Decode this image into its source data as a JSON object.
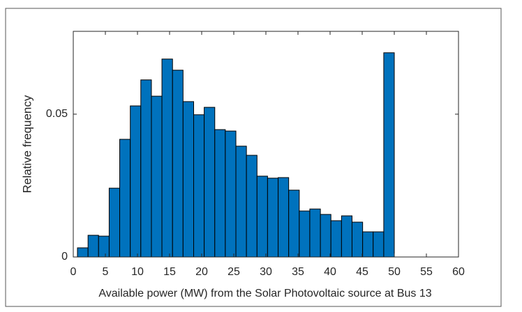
{
  "chart_data": {
    "type": "histogram",
    "xlabel": "Available power (MW) from the Solar Photovoltaic source at Bus 13",
    "ylabel": "Relative frequency",
    "bins": [
      0.65,
      2.3,
      3.94,
      5.59,
      7.23,
      8.88,
      10.52,
      12.17,
      13.81,
      15.46,
      17.1,
      18.75,
      20.39,
      22.04,
      23.68,
      25.33,
      26.97,
      28.62,
      30.26,
      31.91,
      33.55,
      35.2,
      36.84,
      38.49,
      40.13,
      41.78,
      43.42,
      45.07,
      46.71,
      48.36,
      50.0
    ],
    "values": [
      0.0032,
      0.0076,
      0.0073,
      0.0241,
      0.0412,
      0.0529,
      0.062,
      0.0563,
      0.0693,
      0.0654,
      0.0544,
      0.0498,
      0.0524,
      0.0446,
      0.0441,
      0.0388,
      0.0356,
      0.0283,
      0.0276,
      0.0278,
      0.0234,
      0.0161,
      0.0168,
      0.0149,
      0.0127,
      0.0144,
      0.0122,
      0.0088,
      0.0088,
      0.0715
    ],
    "color": "#0072bd",
    "xlim": [
      0,
      60
    ],
    "xticks": [
      0,
      5,
      10,
      15,
      20,
      25,
      30,
      35,
      40,
      45,
      50,
      55,
      60
    ],
    "ylim": [
      0,
      0.079
    ],
    "yticks": [
      0,
      0.05
    ]
  }
}
